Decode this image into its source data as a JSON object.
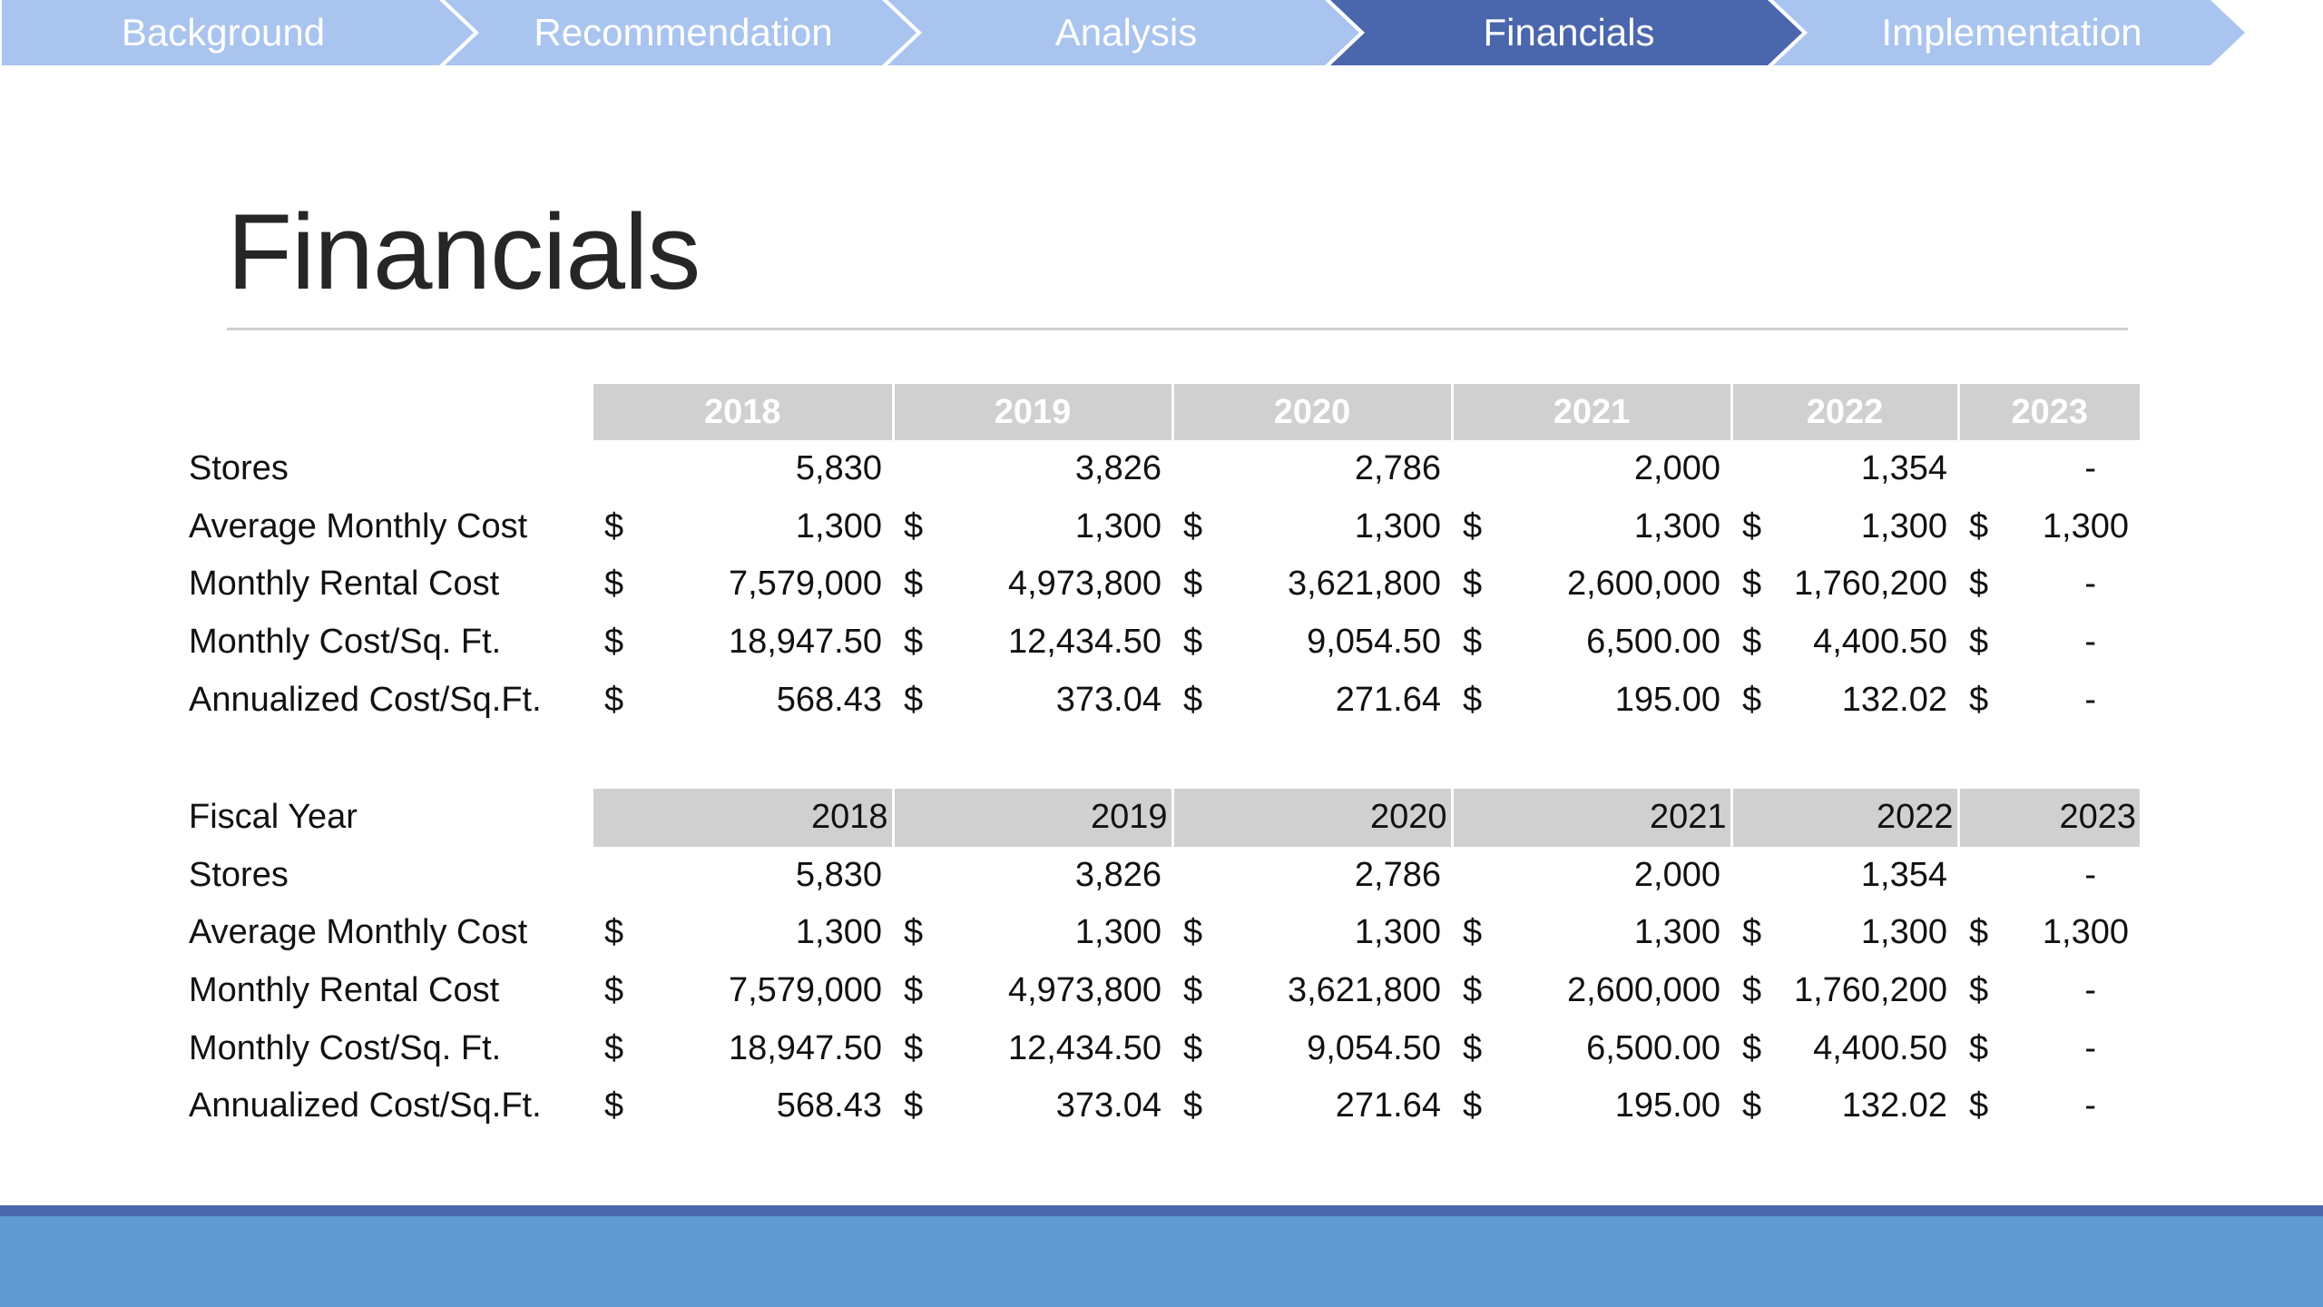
{
  "colors": {
    "nav_inactive": "#a9c4ee",
    "nav_active": "#4a66ad",
    "header_fill": "#d0d0d0",
    "footer_line": "#4a66ad",
    "footer_fill": "#5f9bd1"
  },
  "nav": {
    "steps": [
      "Background",
      "Recommendation",
      "Analysis",
      "Financials",
      "Implementation"
    ],
    "active_step": "Financials"
  },
  "page": {
    "title": "Financials"
  },
  "table1": {
    "header_label": "",
    "years": [
      "2018",
      "2019",
      "2020",
      "2021",
      "2022",
      "2023"
    ],
    "rows": [
      {
        "label": "Stores",
        "currency": [
          "",
          "",
          "",
          "",
          "",
          ""
        ],
        "values": [
          "5,830",
          "3,826",
          "2,786",
          "2,000",
          "1,354",
          "-"
        ]
      },
      {
        "label": "Average Monthly Cost",
        "currency": [
          "$",
          "$",
          "$",
          "$",
          "$",
          "$"
        ],
        "values": [
          "1,300",
          "1,300",
          "1,300",
          "1,300",
          "1,300",
          "1,300"
        ]
      },
      {
        "label": "Monthly Rental Cost",
        "currency": [
          "$",
          "$",
          "$",
          "$",
          "$",
          "$"
        ],
        "values": [
          "7,579,000",
          "4,973,800",
          "3,621,800",
          "2,600,000",
          "1,760,200",
          "-"
        ]
      },
      {
        "label": "Monthly Cost/Sq. Ft.",
        "currency": [
          "$",
          "$",
          "$",
          "$",
          "$",
          "$"
        ],
        "values": [
          "18,947.50",
          "12,434.50",
          "9,054.50",
          "6,500.00",
          "4,400.50",
          "-"
        ]
      },
      {
        "label": "Annualized Cost/Sq.Ft.",
        "currency": [
          "$",
          "$",
          "$",
          "$",
          "$",
          "$"
        ],
        "values": [
          "568.43",
          "373.04",
          "271.64",
          "195.00",
          "132.02",
          "-"
        ]
      }
    ]
  },
  "table2": {
    "header_label": "Fiscal Year",
    "years": [
      "2018",
      "2019",
      "2020",
      "2021",
      "2022",
      "2023"
    ],
    "rows": [
      {
        "label": "Stores",
        "currency": [
          "",
          "",
          "",
          "",
          "",
          ""
        ],
        "values": [
          "5,830",
          "3,826",
          "2,786",
          "2,000",
          "1,354",
          "-"
        ]
      },
      {
        "label": "Average Monthly Cost",
        "currency": [
          "$",
          "$",
          "$",
          "$",
          "$",
          "$"
        ],
        "values": [
          "1,300",
          "1,300",
          "1,300",
          "1,300",
          "1,300",
          "1,300"
        ]
      },
      {
        "label": "Monthly Rental Cost",
        "currency": [
          "$",
          "$",
          "$",
          "$",
          "$",
          "$"
        ],
        "values": [
          "7,579,000",
          "4,973,800",
          "3,621,800",
          "2,600,000",
          "1,760,200",
          "-"
        ]
      },
      {
        "label": "Monthly Cost/Sq. Ft.",
        "currency": [
          "$",
          "$",
          "$",
          "$",
          "$",
          "$"
        ],
        "values": [
          "18,947.50",
          "12,434.50",
          "9,054.50",
          "6,500.00",
          "4,400.50",
          "-"
        ]
      },
      {
        "label": "Annualized Cost/Sq.Ft.",
        "currency": [
          "$",
          "$",
          "$",
          "$",
          "$",
          "$"
        ],
        "values": [
          "568.43",
          "373.04",
          "271.64",
          "195.00",
          "132.02",
          "-"
        ]
      }
    ]
  }
}
